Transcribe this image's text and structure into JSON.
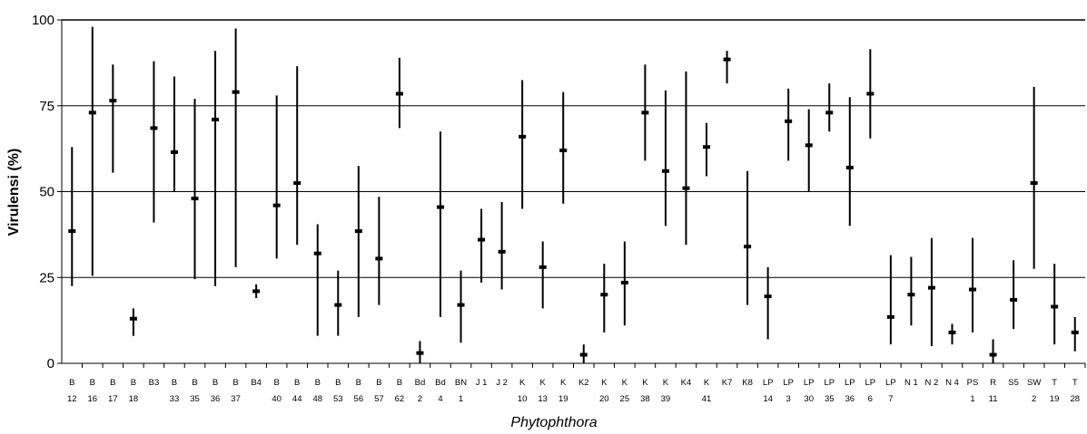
{
  "chart_data": {
    "type": "range-plot",
    "xlabel": "Phytophthora",
    "ylabel": "Virulensi (%)",
    "ylim": [
      0,
      100
    ],
    "yticks": [
      0,
      25,
      50,
      75,
      100
    ],
    "grid": "horizontal",
    "categories": [
      [
        "B",
        "12"
      ],
      [
        "B",
        "16"
      ],
      [
        "B",
        "17"
      ],
      [
        "B",
        "18"
      ],
      [
        "B3",
        ""
      ],
      [
        "B",
        "33"
      ],
      [
        "B",
        "35"
      ],
      [
        "B",
        "36"
      ],
      [
        "B",
        "37"
      ],
      [
        "B4",
        ""
      ],
      [
        "B",
        "40"
      ],
      [
        "B",
        "44"
      ],
      [
        "B",
        "48"
      ],
      [
        "B",
        "53"
      ],
      [
        "B",
        "56"
      ],
      [
        "B",
        "57"
      ],
      [
        "B",
        "62"
      ],
      [
        "Bd",
        "2"
      ],
      [
        "Bd",
        "4"
      ],
      [
        "BN",
        "1"
      ],
      [
        "J 1",
        ""
      ],
      [
        "J 2",
        ""
      ],
      [
        "K",
        "10"
      ],
      [
        "K",
        "13"
      ],
      [
        "K",
        "19"
      ],
      [
        "K2",
        ""
      ],
      [
        "K",
        "20"
      ],
      [
        "K",
        "25"
      ],
      [
        "K",
        "38"
      ],
      [
        "K",
        "39"
      ],
      [
        "K4",
        ""
      ],
      [
        "K",
        "41"
      ],
      [
        "K7",
        ""
      ],
      [
        "K8",
        ""
      ],
      [
        "LP",
        "14"
      ],
      [
        "LP",
        "3"
      ],
      [
        "LP",
        "30"
      ],
      [
        "LP",
        "35"
      ],
      [
        "LP",
        "36"
      ],
      [
        "LP",
        "6"
      ],
      [
        "LP",
        "7"
      ],
      [
        "N 1",
        ""
      ],
      [
        "N 2",
        ""
      ],
      [
        "N 4",
        ""
      ],
      [
        "PS",
        "1"
      ],
      [
        "R",
        "11"
      ],
      [
        "S5",
        ""
      ],
      [
        "SW",
        "2"
      ],
      [
        "T",
        "19"
      ],
      [
        "T",
        "28"
      ]
    ],
    "series": [
      {
        "name": "",
        "kind": "mean",
        "values": [
          38.5,
          73,
          76.5,
          13,
          68.5,
          61.5,
          48,
          71,
          79,
          21,
          46,
          52.5,
          32,
          17,
          38.5,
          30.5,
          78.5,
          3,
          45.5,
          17,
          36,
          32.5,
          66,
          28,
          62,
          2.5,
          20,
          23.5,
          73,
          56,
          51,
          63,
          88.5,
          34,
          19.5,
          70.5,
          63.5,
          73,
          57,
          78.5,
          13.5,
          20,
          22,
          9,
          21.5,
          2.5,
          18.5,
          52.5,
          16.5,
          9
        ]
      },
      {
        "name": "",
        "kind": "min",
        "values": [
          22.5,
          25.5,
          55.5,
          8,
          41,
          50,
          24.5,
          22.5,
          28,
          19,
          30.5,
          34.5,
          8,
          8,
          13.5,
          17,
          68.5,
          0,
          13.5,
          6,
          23.5,
          21.5,
          45,
          16,
          46.5,
          0,
          9,
          11,
          59,
          40,
          34.5,
          54.5,
          81.5,
          17,
          7,
          59,
          50,
          67.5,
          40,
          65.5,
          5.5,
          11,
          5,
          5.5,
          9,
          0,
          10,
          27.5,
          5.5,
          3.5
        ]
      },
      {
        "name": "",
        "kind": "max",
        "values": [
          63,
          98,
          87,
          16,
          88,
          83.5,
          77,
          91,
          97.5,
          23,
          78,
          86.5,
          40.5,
          27,
          57.5,
          48.5,
          89,
          6.5,
          67.5,
          27,
          45,
          47,
          82.5,
          35.5,
          79,
          5.5,
          29,
          35.5,
          87,
          79.5,
          85,
          70,
          91,
          56,
          28,
          80,
          74,
          81.5,
          77.5,
          91.5,
          31.5,
          31,
          36.5,
          11.5,
          36.5,
          7,
          30,
          80.5,
          29,
          13.5
        ]
      }
    ]
  }
}
